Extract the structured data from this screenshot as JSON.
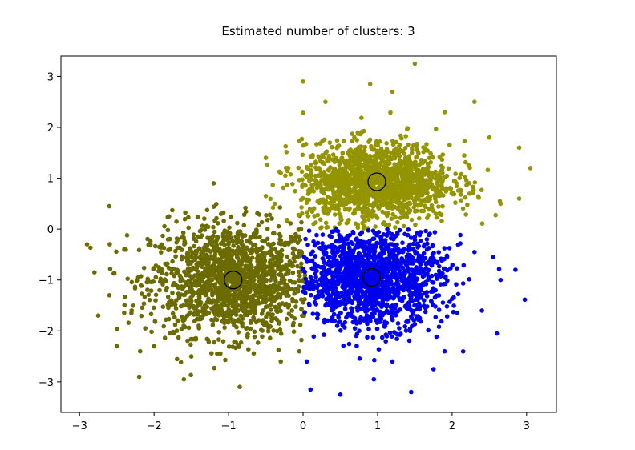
{
  "chart_data": {
    "type": "scatter",
    "title": "Estimated number of clusters: 3",
    "xlabel": "",
    "ylabel": "",
    "xlim": [
      -3.25,
      3.4
    ],
    "ylim": [
      -3.6,
      3.4
    ],
    "xticks": [
      -3,
      -2,
      -1,
      0,
      1,
      2,
      3
    ],
    "yticks": [
      -3,
      -2,
      -1,
      0,
      1,
      2,
      3
    ],
    "xtick_labels": [
      "−3",
      "−2",
      "−1",
      "0",
      "1",
      "2",
      "3"
    ],
    "ytick_labels": [
      "−3",
      "−2",
      "−1",
      "0",
      "1",
      "2",
      "3"
    ],
    "grid": false,
    "series": [
      {
        "color": "#6b6b00",
        "center": [
          -0.94,
          -1.0
        ],
        "spread": [
          0.55,
          0.55
        ],
        "region": {
          "x": [
            -3.0,
            0.03
          ],
          "y": [
            -3.2,
            0.55
          ]
        },
        "points": [
          [
            -2.9,
            -0.3
          ],
          [
            -2.8,
            -0.85
          ],
          [
            -2.75,
            -1.7
          ],
          [
            -2.6,
            0.45
          ],
          [
            -2.5,
            -2.3
          ],
          [
            -2.2,
            -2.9
          ],
          [
            -1.6,
            -2.95
          ],
          [
            -0.85,
            -3.1
          ],
          [
            -1.1,
            0.3
          ],
          [
            -1.2,
            0.9
          ],
          [
            -1.8,
            0.25
          ],
          [
            -2.3,
            -1.6
          ],
          [
            -2.6,
            -1.3
          ],
          [
            -2.4,
            -0.4
          ],
          [
            -0.3,
            -2.6
          ],
          [
            -0.05,
            -2.4
          ],
          [
            -1.5,
            -2.5
          ],
          [
            -2.0,
            -2.3
          ]
        ]
      },
      {
        "color": "#949400",
        "center": [
          0.99,
          0.93
        ],
        "spread": [
          0.5,
          0.38
        ],
        "region": {
          "x": [
            -0.55,
            3.1
          ],
          "y": [
            -0.02,
            3.3
          ]
        },
        "points": [
          [
            0.0,
            2.9
          ],
          [
            -0.5,
            1.4
          ],
          [
            0.9,
            2.85
          ],
          [
            1.5,
            3.25
          ],
          [
            2.3,
            2.5
          ],
          [
            2.9,
            1.6
          ],
          [
            3.05,
            1.2
          ],
          [
            2.9,
            0.6
          ],
          [
            2.65,
            0.5
          ],
          [
            -0.5,
            0.65
          ],
          [
            -0.3,
            1.1
          ],
          [
            0.3,
            2.5
          ],
          [
            1.9,
            2.3
          ],
          [
            2.5,
            1.8
          ],
          [
            1.2,
            2.7
          ]
        ]
      },
      {
        "color": "#0000ee",
        "center": [
          0.92,
          -0.95
        ],
        "spread": [
          0.48,
          0.48
        ],
        "region": {
          "x": [
            0.0,
            3.0
          ],
          "y": [
            -3.25,
            0.0
          ]
        },
        "points": [
          [
            0.1,
            -3.15
          ],
          [
            0.5,
            -3.25
          ],
          [
            1.45,
            -3.2
          ],
          [
            0.95,
            -2.95
          ],
          [
            2.85,
            -0.8
          ],
          [
            2.65,
            -1.0
          ],
          [
            2.6,
            -2.05
          ],
          [
            1.75,
            -2.75
          ],
          [
            2.3,
            -0.45
          ],
          [
            2.55,
            -0.55
          ],
          [
            0.05,
            -2.6
          ],
          [
            1.2,
            -2.6
          ],
          [
            2.4,
            -1.6
          ],
          [
            1.9,
            -2.4
          ]
        ]
      }
    ],
    "centers": [
      [
        -0.94,
        -1.0
      ],
      [
        0.99,
        0.93
      ],
      [
        0.92,
        -0.95
      ]
    ]
  }
}
